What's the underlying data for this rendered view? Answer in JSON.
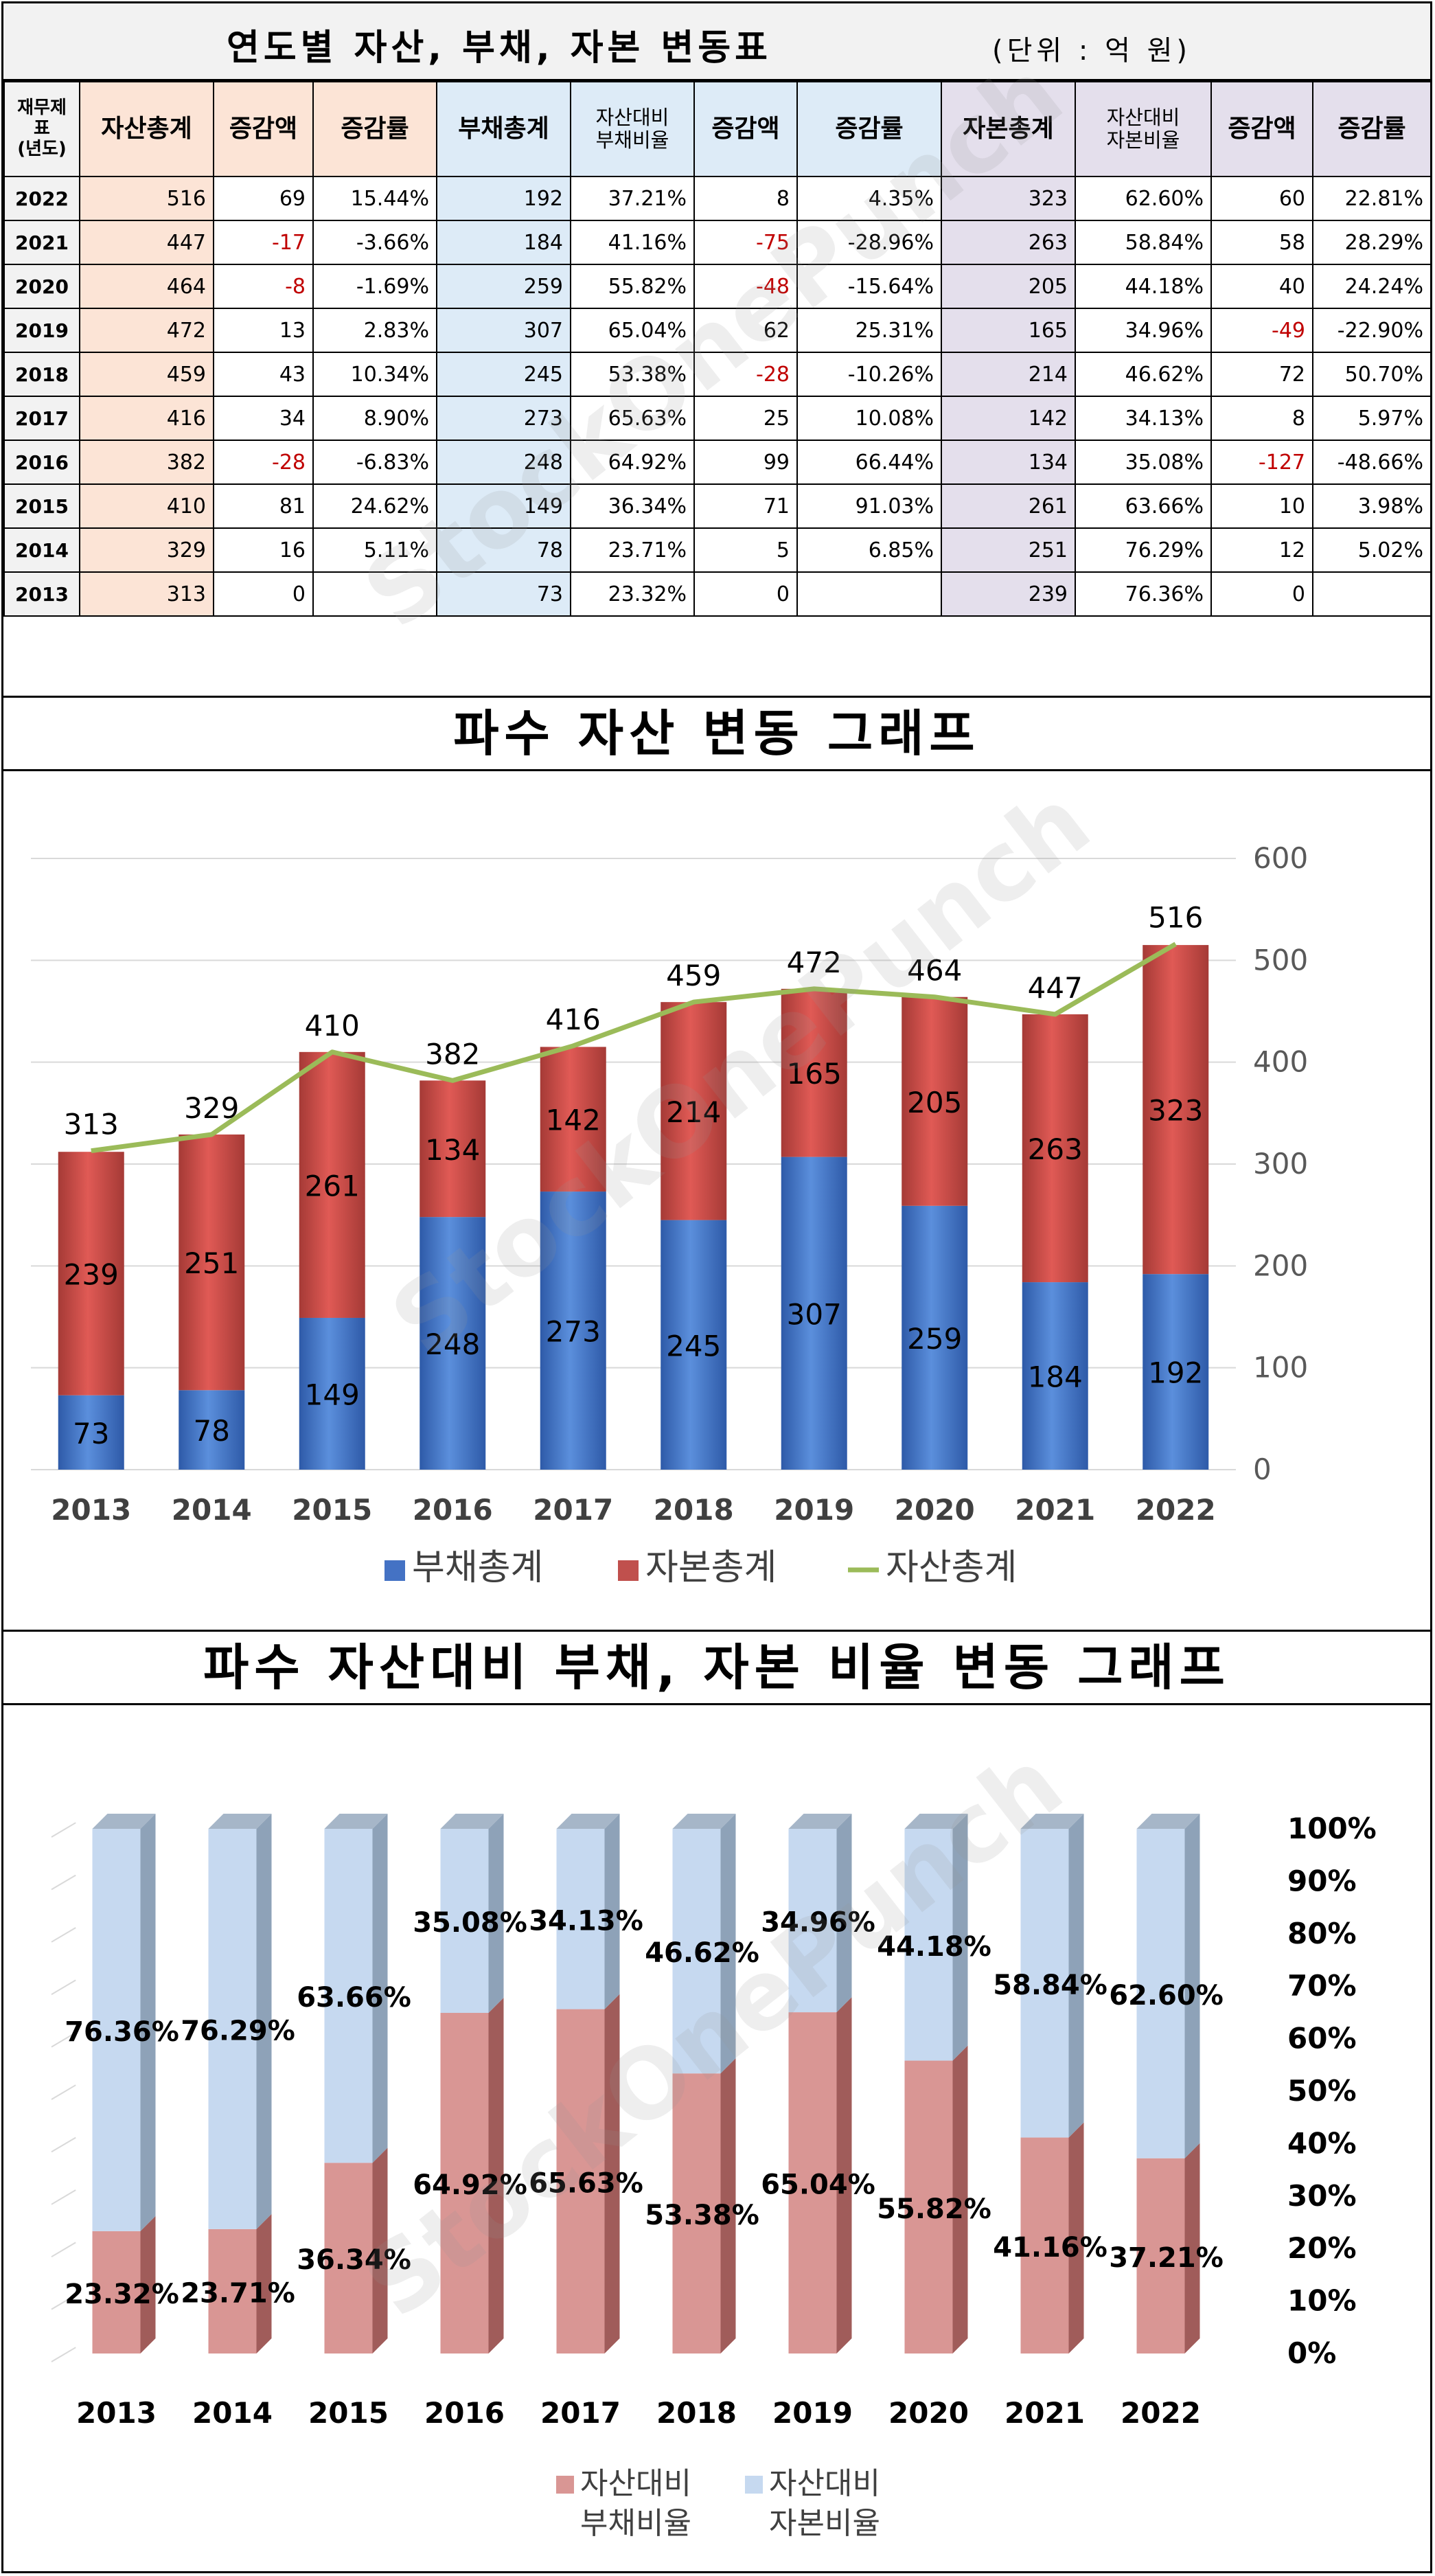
{
  "table": {
    "title": "연도별 자산, 부채, 자본 변동표",
    "unit": "(단위 : 억 원)",
    "headers": [
      "재무제표\n(년도)",
      "자산총계",
      "증감액",
      "증감률",
      "부채총계",
      "자산대비\n부채비율",
      "증감액",
      "증감률",
      "자본총계",
      "자산대비\n자본비율",
      "증감액",
      "증감률"
    ],
    "rows": [
      [
        "2022",
        "516",
        "69",
        "15.44%",
        "192",
        "37.21%",
        "8",
        "4.35%",
        "323",
        "62.60%",
        "60",
        "22.81%"
      ],
      [
        "2021",
        "447",
        "-17",
        "-3.66%",
        "184",
        "41.16%",
        "-75",
        "-28.96%",
        "263",
        "58.84%",
        "58",
        "28.29%"
      ],
      [
        "2020",
        "464",
        "-8",
        "-1.69%",
        "259",
        "55.82%",
        "-48",
        "-15.64%",
        "205",
        "44.18%",
        "40",
        "24.24%"
      ],
      [
        "2019",
        "472",
        "13",
        "2.83%",
        "307",
        "65.04%",
        "62",
        "25.31%",
        "165",
        "34.96%",
        "-49",
        "-22.90%"
      ],
      [
        "2018",
        "459",
        "43",
        "10.34%",
        "245",
        "53.38%",
        "-28",
        "-10.26%",
        "214",
        "46.62%",
        "72",
        "50.70%"
      ],
      [
        "2017",
        "416",
        "34",
        "8.90%",
        "273",
        "65.63%",
        "25",
        "10.08%",
        "142",
        "34.13%",
        "8",
        "5.97%"
      ],
      [
        "2016",
        "382",
        "-28",
        "-6.83%",
        "248",
        "64.92%",
        "99",
        "66.44%",
        "134",
        "35.08%",
        "-127",
        "-48.66%"
      ],
      [
        "2015",
        "410",
        "81",
        "24.62%",
        "149",
        "36.34%",
        "71",
        "91.03%",
        "261",
        "63.66%",
        "10",
        "3.98%"
      ],
      [
        "2014",
        "329",
        "16",
        "5.11%",
        "78",
        "23.71%",
        "5",
        "6.85%",
        "251",
        "76.29%",
        "12",
        "5.02%"
      ],
      [
        "2013",
        "313",
        "0",
        "",
        "73",
        "23.32%",
        "0",
        "",
        "239",
        "76.36%",
        "0",
        ""
      ]
    ]
  },
  "watermark": "StockOnePunch",
  "colors": {
    "liab": "#4472c4",
    "equity": "#c0504d",
    "asset_line": "#9bbb59",
    "ratio_liab": "#d99694",
    "ratio_eq": "#c6d9f0"
  },
  "chart_data": [
    {
      "type": "bar",
      "title": "파수 자산 변동 그래프",
      "stacked": true,
      "categories": [
        "2013",
        "2014",
        "2015",
        "2016",
        "2017",
        "2018",
        "2019",
        "2020",
        "2021",
        "2022"
      ],
      "series": [
        {
          "name": "부채총계",
          "kind": "bar",
          "values": [
            73,
            78,
            149,
            248,
            273,
            245,
            307,
            259,
            184,
            192
          ]
        },
        {
          "name": "자본총계",
          "kind": "bar",
          "values": [
            239,
            251,
            261,
            134,
            142,
            214,
            165,
            205,
            263,
            323
          ]
        },
        {
          "name": "자산총계",
          "kind": "line",
          "values": [
            313,
            329,
            410,
            382,
            416,
            459,
            472,
            464,
            447,
            516
          ]
        }
      ],
      "ylim": [
        0,
        600
      ],
      "yticks": [
        "0",
        "100",
        "200",
        "300",
        "400",
        "500",
        "600"
      ],
      "yaxis_position": "right",
      "grid": true,
      "legend": "bottom"
    },
    {
      "type": "bar",
      "title": "파수 자산대비 부채, 자본 비율 변동 그래프",
      "stacked": true,
      "categories": [
        "2013",
        "2014",
        "2015",
        "2016",
        "2017",
        "2018",
        "2019",
        "2020",
        "2021",
        "2022"
      ],
      "series": [
        {
          "name": "자산대비\n부채비율",
          "values": [
            23.32,
            23.71,
            36.34,
            64.92,
            65.63,
            53.38,
            65.04,
            55.82,
            41.16,
            37.21
          ],
          "labels": [
            "23.32%",
            "23.71%",
            "36.34%",
            "64.92%",
            "65.63%",
            "53.38%",
            "65.04%",
            "55.82%",
            "41.16%",
            "37.21%"
          ]
        },
        {
          "name": "자산대비\n자본비율",
          "values": [
            76.36,
            76.29,
            63.66,
            35.08,
            34.13,
            46.62,
            34.96,
            44.18,
            58.84,
            62.6
          ],
          "labels": [
            "76.36%",
            "76.29%",
            "63.66%",
            "35.08%",
            "34.13%",
            "46.62%",
            "34.96%",
            "44.18%",
            "58.84%",
            "62.60%"
          ]
        }
      ],
      "ylim": [
        0,
        100
      ],
      "yticks": [
        "0%",
        "10%",
        "20%",
        "30%",
        "40%",
        "50%",
        "60%",
        "70%",
        "80%",
        "90%",
        "100%"
      ],
      "yaxis_position": "right",
      "grid": true,
      "legend": "bottom"
    }
  ]
}
